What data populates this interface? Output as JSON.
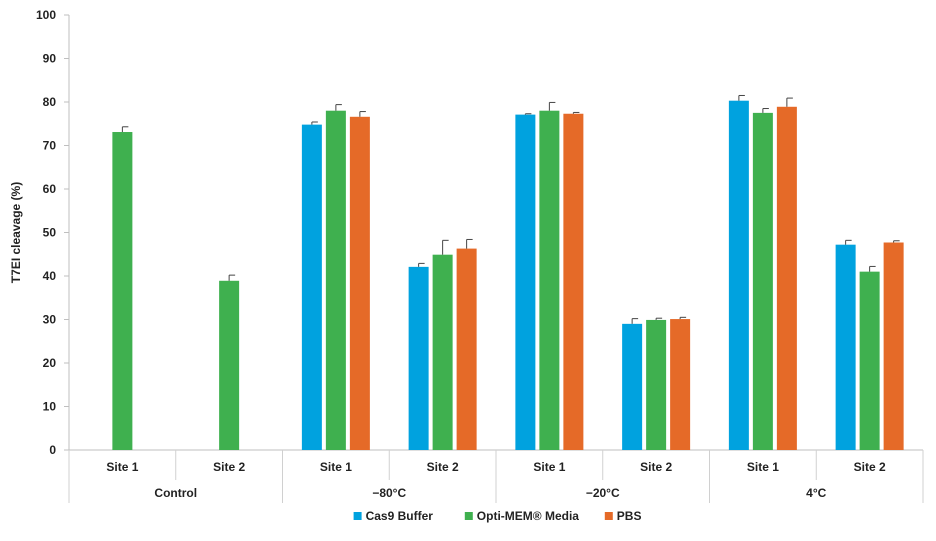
{
  "chart_data": {
    "type": "bar",
    "ylabel": "T7EI cleavage (%)",
    "ylim": [
      0,
      100
    ],
    "yticks": [
      0,
      10,
      20,
      30,
      40,
      50,
      60,
      70,
      80,
      90,
      100
    ],
    "grid": false,
    "legend_position": "bottom",
    "groups": [
      "Control",
      "−80°C",
      "−20°C",
      "4°C"
    ],
    "categories": [
      "Site 1",
      "Site 2",
      "Site 1",
      "Site 2",
      "Site 1",
      "Site 2",
      "Site 1",
      "Site 2"
    ],
    "category_group": [
      0,
      0,
      1,
      1,
      2,
      2,
      3,
      3
    ],
    "series": [
      {
        "name": "Cas9 Buffer",
        "color": "#00A2DF",
        "values": [
          null,
          null,
          74.8,
          42.1,
          77.1,
          29.0,
          80.3,
          47.2
        ],
        "errors": [
          null,
          null,
          0.6,
          0.8,
          0.2,
          1.2,
          1.2,
          1.0
        ]
      },
      {
        "name": "Opti-MEM® Media",
        "color": "#3FB04F",
        "values": [
          73.1,
          38.9,
          78.0,
          44.9,
          78.0,
          29.9,
          77.5,
          41.0
        ],
        "errors": [
          1.2,
          1.3,
          1.4,
          3.3,
          1.9,
          0.4,
          1.0,
          1.2
        ]
      },
      {
        "name": "PBS",
        "color": "#E56A28",
        "values": [
          null,
          null,
          76.6,
          46.3,
          77.3,
          30.1,
          78.9,
          47.7
        ],
        "errors": [
          null,
          null,
          1.2,
          2.1,
          0.3,
          0.4,
          2.0,
          0.4
        ]
      }
    ]
  }
}
